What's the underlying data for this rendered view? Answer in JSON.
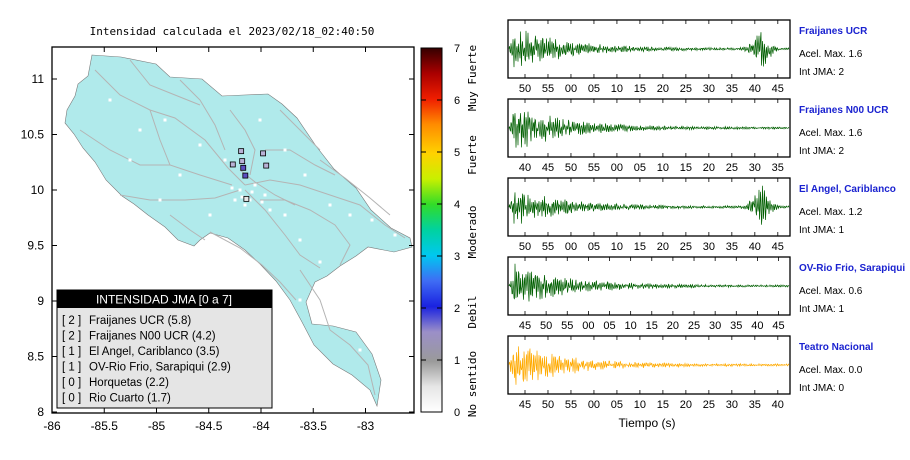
{
  "map": {
    "title": "Intensidad calculada el 2023/02/18_02:40:50",
    "x_ticks": [
      "-86",
      "-85.5",
      "-85",
      "-84.5",
      "-84",
      "-83.5",
      "-83"
    ],
    "y_ticks": [
      "11",
      "10.5",
      "10",
      "9.5",
      "9",
      "8.5",
      "8"
    ],
    "xlim": [
      -86,
      -82.8
    ],
    "ylim": [
      8,
      11.3
    ],
    "land_color": "#b0eaeb",
    "road_color": "#b4b4b4"
  },
  "legend": {
    "title": "INTENSIDAD JMA [0 a 7]",
    "items": [
      {
        "jma": "[ 2 ]",
        "text": "Fraijanes UCR (5.8)"
      },
      {
        "jma": "[ 2 ]",
        "text": "Fraijanes N00 UCR (4.2)"
      },
      {
        "jma": "[ 1 ]",
        "text": "El Angel, Cariblanco (3.5)"
      },
      {
        "jma": "[ 1 ]",
        "text": "OV-Rio Frio, Sarapiqui (2.9)"
      },
      {
        "jma": "[ 0 ]",
        "text": "Horquetas (2.2)"
      },
      {
        "jma": "[ 0 ]",
        "text": "Rio Cuarto (1.7)"
      }
    ]
  },
  "colorbar": {
    "ticks": [
      "0",
      "1",
      "2",
      "3",
      "4",
      "5",
      "6",
      "7"
    ],
    "labels": [
      "No sentido",
      "Debil",
      "Moderado",
      "Fuerte",
      "Muy Fuerte"
    ],
    "range": [
      0,
      7
    ]
  },
  "stations": [
    {
      "lon": -84.15,
      "lat": 10.13,
      "jma": 2
    },
    {
      "lon": -84.17,
      "lat": 10.2,
      "jma": 2
    },
    {
      "lon": -84.19,
      "lat": 10.35,
      "jma": 1
    },
    {
      "lon": -83.98,
      "lat": 10.33,
      "jma": 1
    },
    {
      "lon": -84.27,
      "lat": 10.23,
      "jma": 1
    },
    {
      "lon": -83.95,
      "lat": 10.22,
      "jma": 1
    },
    {
      "lon": -84.18,
      "lat": 10.26,
      "jma": 1
    },
    {
      "lon": -84.14,
      "lat": 9.92,
      "jma": 0
    }
  ],
  "panels": [
    {
      "name": "Fraijanes UCR",
      "accel": "Acel. Max. 1.6",
      "jma": "Int JMA: 2",
      "ticks": [
        "50",
        "55",
        "00",
        "05",
        "10",
        "15",
        "20",
        "25",
        "30",
        "35",
        "40",
        "45"
      ],
      "color": "#005f00",
      "amp": 0.85,
      "burst": 0.75
    },
    {
      "name": "Fraijanes N00 UCR",
      "accel": "Acel. Max. 1.6",
      "jma": "Int JMA: 2",
      "ticks": [
        "40",
        "45",
        "50",
        "55",
        "00",
        "05",
        "10",
        "15",
        "20",
        "25",
        "30",
        "35"
      ],
      "color": "#005f00",
      "amp": 0.9,
      "burst": 0
    },
    {
      "name": "El Angel, Cariblanco",
      "accel": "Acel. Max. 1.2",
      "jma": "Int JMA: 1",
      "ticks": [
        "50",
        "55",
        "00",
        "05",
        "10",
        "15",
        "20",
        "25",
        "30",
        "35",
        "40",
        "45"
      ],
      "color": "#005f00",
      "amp": 0.7,
      "burst": 0.85
    },
    {
      "name": "OV-Rio Frio, Sarapiqui",
      "accel": "Acel. Max. 0.6",
      "jma": "Int JMA: 1",
      "ticks": [
        "45",
        "50",
        "55",
        "00",
        "05",
        "10",
        "15",
        "20",
        "25",
        "30",
        "35",
        "40",
        "45"
      ],
      "color": "#005f00",
      "amp": 0.9,
      "burst": 0
    },
    {
      "name": "Teatro Nacional",
      "accel": "Acel. Max. 0.0",
      "jma": "Int JMA: 0",
      "ticks": [
        "45",
        "50",
        "55",
        "00",
        "05",
        "10",
        "15",
        "20",
        "25",
        "30",
        "35",
        "40"
      ],
      "color": "#ffaa00",
      "amp": 0.95,
      "burst": 0
    }
  ],
  "xlabel": "Tiempo (s)"
}
